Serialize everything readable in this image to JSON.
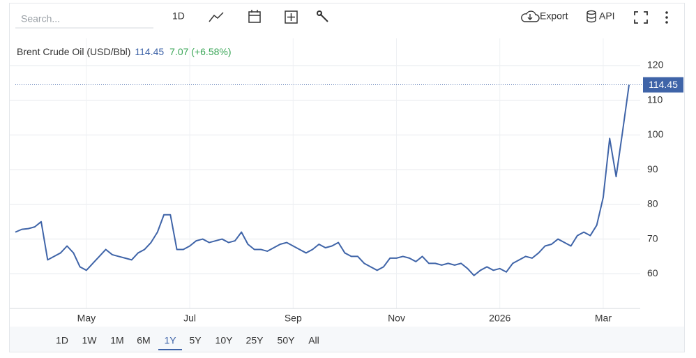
{
  "toolbar": {
    "search_placeholder": "Search...",
    "interval": "1D",
    "export": "Export",
    "api": "API"
  },
  "header": {
    "change": "7.07 (+6.58%)"
  },
  "ranges": [
    "1D",
    "1W",
    "1M",
    "6M",
    "1Y",
    "5Y",
    "10Y",
    "25Y",
    "50Y",
    "All"
  ],
  "selected_range": "1Y",
  "chart_data": {
    "type": "line",
    "title": "Brent Crude Oil (USD/Bbl)",
    "categories": [
      null,
      null,
      null,
      null,
      null,
      null,
      null,
      null,
      null,
      null,
      null,
      "May",
      null,
      null,
      null,
      null,
      null,
      null,
      null,
      null,
      null,
      null,
      null,
      null,
      null,
      null,
      null,
      "Jul",
      null,
      null,
      null,
      null,
      null,
      null,
      null,
      null,
      null,
      null,
      null,
      null,
      null,
      null,
      null,
      "Sep",
      null,
      null,
      null,
      null,
      null,
      null,
      null,
      null,
      null,
      null,
      null,
      null,
      null,
      null,
      null,
      "Nov",
      null,
      null,
      null,
      null,
      null,
      null,
      null,
      null,
      null,
      null,
      null,
      null,
      null,
      null,
      null,
      "2026",
      null,
      null,
      null,
      null,
      null,
      null,
      null,
      null,
      null,
      null,
      null,
      null,
      null,
      null,
      null,
      "Mar",
      null,
      null,
      null,
      null
    ],
    "series": [
      {
        "name": "Brent Crude Oil (USD/Bbl)",
        "color": "#3f64a8",
        "values": [
          72,
          72.8,
          73,
          73.5,
          75,
          64,
          65,
          66,
          68,
          66,
          62,
          61,
          63,
          65,
          67,
          65.5,
          65,
          64.5,
          64,
          66,
          67,
          69,
          72,
          77,
          77,
          67,
          67,
          68,
          69.5,
          70,
          69,
          69.5,
          70,
          69,
          69.5,
          72,
          68.5,
          67,
          67,
          66.5,
          67.5,
          68.5,
          69,
          68,
          67,
          66,
          67,
          68.5,
          67.5,
          68,
          69,
          66,
          65,
          65,
          63,
          62,
          61,
          62,
          64.5,
          64.5,
          65,
          64.5,
          63.5,
          65,
          63,
          63,
          62.5,
          63,
          62.5,
          63,
          61.5,
          59.5,
          61,
          62,
          61,
          61.5,
          60.5,
          63,
          64,
          65,
          64.5,
          66,
          68,
          68.5,
          70,
          69,
          68,
          71,
          72,
          71,
          74,
          82,
          99,
          88,
          101,
          114.45
        ]
      }
    ],
    "ylim": [
      50,
      122
    ],
    "yticks": [
      60,
      70,
      80,
      90,
      100,
      110,
      120
    ],
    "grid": true
  }
}
